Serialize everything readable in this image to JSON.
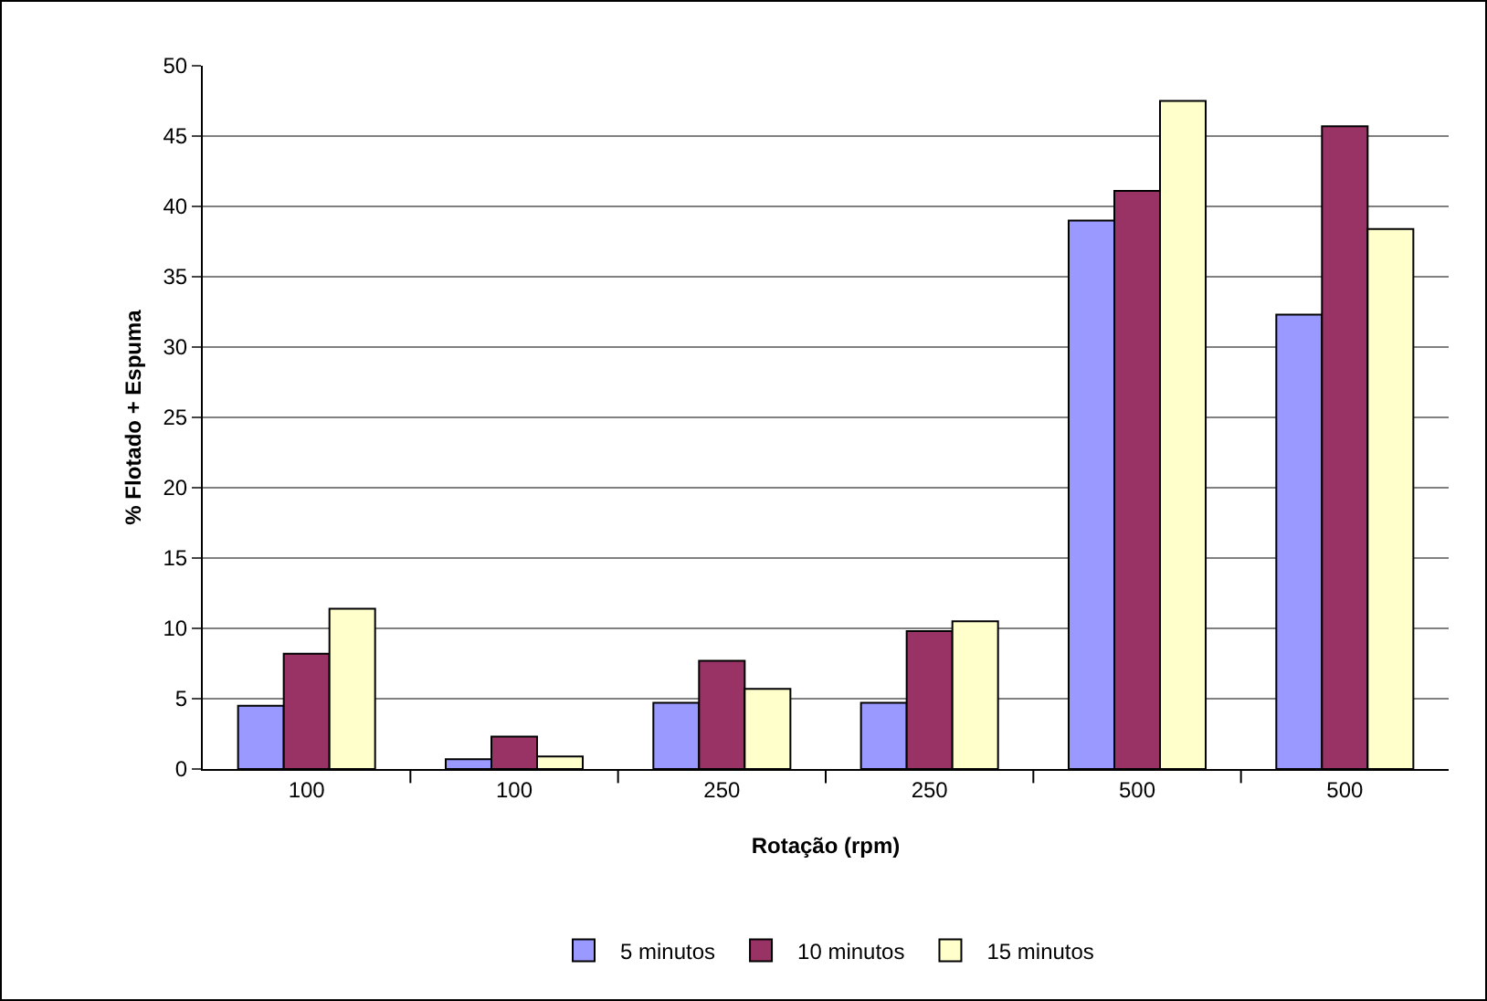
{
  "chart_data": {
    "type": "bar",
    "xlabel": "Rotação (rpm)",
    "ylabel": "% Flotado + Espuma",
    "categories": [
      "100",
      "100",
      "250",
      "250",
      "500",
      "500"
    ],
    "series": [
      {
        "name": "5 minutos",
        "color": "#9999ff",
        "values": [
          4.5,
          0.7,
          4.7,
          4.7,
          39,
          32.3
        ]
      },
      {
        "name": "10 minutos",
        "color": "#993366",
        "values": [
          8.2,
          2.3,
          7.7,
          9.8,
          41.1,
          45.7
        ]
      },
      {
        "name": "15 minutos",
        "color": "#ffffcc",
        "values": [
          11.4,
          0.9,
          5.7,
          10.5,
          47.5,
          38.4
        ]
      }
    ],
    "ylim": [
      0,
      50
    ],
    "yticks": [
      0,
      5,
      10,
      15,
      20,
      25,
      30,
      35,
      40,
      45,
      50
    ],
    "grid": "y",
    "legend": "bottom"
  }
}
